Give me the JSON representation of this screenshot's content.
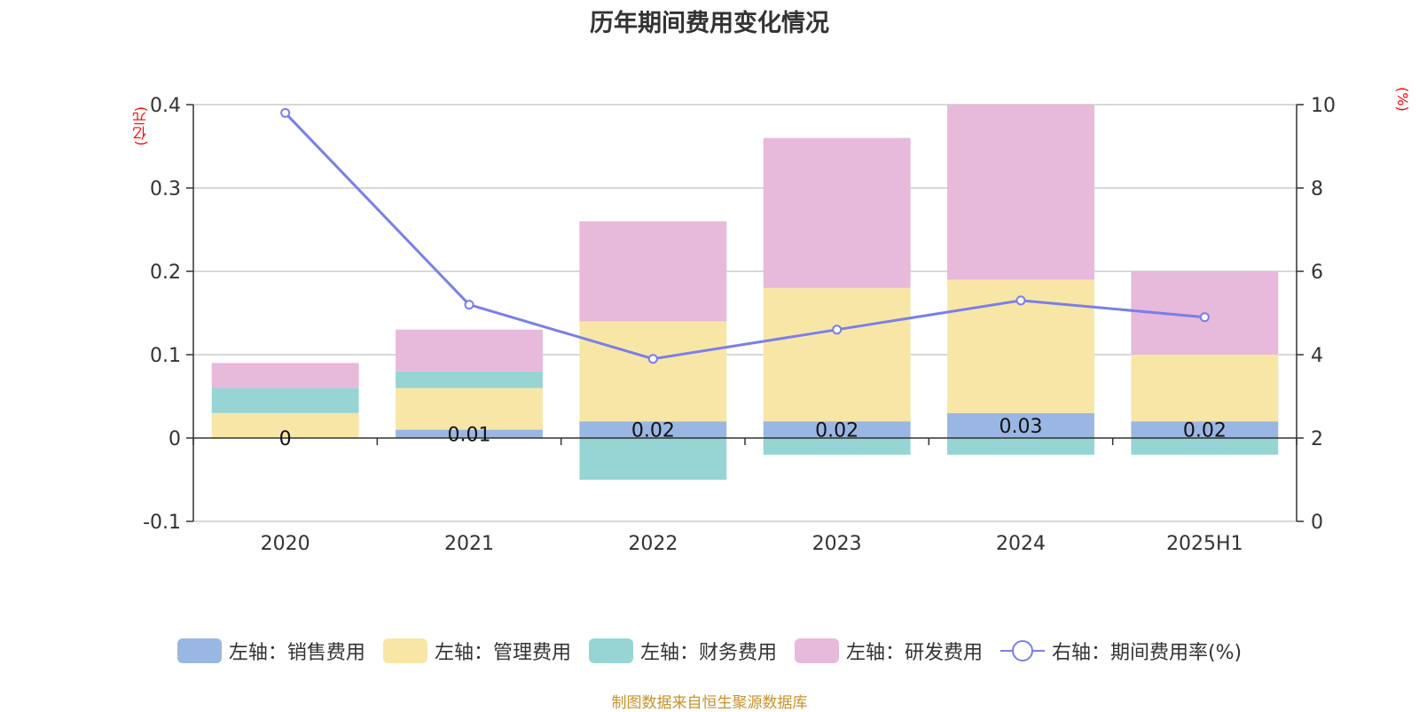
{
  "chart_data": {
    "type": "bar",
    "title": "历年期间费用变化情况",
    "categories": [
      "2020",
      "2021",
      "2022",
      "2023",
      "2024",
      "2025H1"
    ],
    "series": [
      {
        "name": "左轴：销售费用",
        "type": "bar",
        "axis": "left",
        "color": "#9ab6e2",
        "values": [
          0,
          0.01,
          0.02,
          0.02,
          0.03,
          0.02
        ],
        "data_labels": [
          "0",
          "0.01",
          "0.02",
          "0.02",
          "0.03",
          "0.02"
        ]
      },
      {
        "name": "左轴：管理费用",
        "type": "bar",
        "axis": "left",
        "color": "#f8e6a7",
        "values": [
          0.03,
          0.05,
          0.12,
          0.16,
          0.16,
          0.08
        ]
      },
      {
        "name": "左轴：财务费用",
        "type": "bar",
        "axis": "left",
        "color": "#97d4d4",
        "values": [
          0.03,
          0.02,
          -0.05,
          -0.02,
          -0.02,
          -0.02
        ]
      },
      {
        "name": "左轴：研发费用",
        "type": "bar",
        "axis": "left",
        "color": "#e7b9da",
        "values": [
          0.03,
          0.05,
          0.12,
          0.18,
          0.21,
          0.1
        ]
      },
      {
        "name": "右轴：期间费用率(%)",
        "type": "line",
        "axis": "right",
        "color": "#7b7fe8",
        "values": [
          9.8,
          5.2,
          3.9,
          4.6,
          5.3,
          4.9
        ]
      }
    ],
    "left_axis": {
      "unit": "(亿元)",
      "ylim": [
        -0.1,
        0.4
      ],
      "ticks": [
        "-0.1",
        "0",
        "0.1",
        "0.2",
        "0.3",
        "0.4"
      ]
    },
    "right_axis": {
      "unit": "(%)",
      "ylim": [
        0,
        10
      ],
      "ticks": [
        "0",
        "2",
        "4",
        "6",
        "8",
        "10"
      ]
    },
    "grid": true,
    "legend": "bottom"
  },
  "source": "制图数据来自恒生聚源数据库"
}
